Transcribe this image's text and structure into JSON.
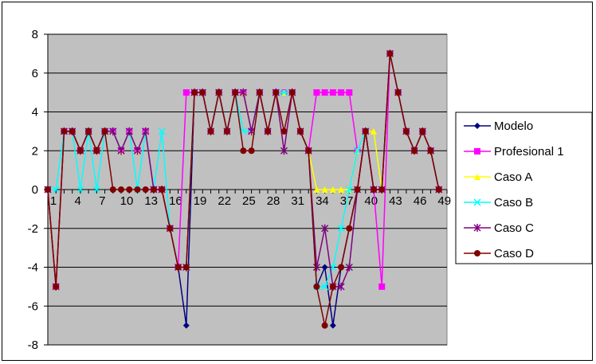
{
  "chart_data": {
    "type": "line",
    "title": "",
    "xlabel": "",
    "ylabel": "",
    "ylim": [
      -8,
      8
    ],
    "ytick_step": 2,
    "xlim": [
      1,
      50
    ],
    "x_tick_labels": [
      "1",
      "4",
      "7",
      "10",
      "13",
      "16",
      "19",
      "22",
      "25",
      "28",
      "31",
      "34",
      "37",
      "40",
      "43",
      "46",
      "49"
    ],
    "plot_background": "#C0C0C0",
    "grid": "horizontal",
    "legend_position": "right",
    "series": [
      {
        "name": "Modelo",
        "color": "#000080",
        "marker": "diamond",
        "values": [
          0,
          -5,
          3,
          3,
          2,
          3,
          2,
          3,
          3,
          2,
          3,
          2,
          3,
          0,
          0,
          -2,
          -4,
          -7,
          5,
          5,
          3,
          5,
          3,
          5,
          5,
          3,
          5,
          3,
          5,
          5,
          5,
          3,
          2,
          -5,
          -4,
          -7,
          -4,
          -2,
          0,
          3,
          0,
          0,
          7,
          5,
          3,
          2,
          3,
          2,
          0
        ]
      },
      {
        "name": "Profesional 1",
        "color": "#FF00FF",
        "marker": "square",
        "values": [
          0,
          -5,
          3,
          3,
          2,
          3,
          2,
          3,
          3,
          2,
          3,
          2,
          3,
          0,
          0,
          -2,
          -4,
          5,
          5,
          5,
          3,
          5,
          3,
          5,
          5,
          3,
          5,
          3,
          5,
          5,
          5,
          3,
          2,
          5,
          5,
          5,
          5,
          5,
          2,
          3,
          0,
          -5,
          7,
          5,
          3,
          2,
          3,
          2,
          0
        ]
      },
      {
        "name": "Caso A",
        "color": "#FFFF00",
        "marker": "triangle",
        "values": [
          0,
          -5,
          3,
          3,
          2,
          3,
          2,
          3,
          3,
          2,
          3,
          2,
          3,
          0,
          0,
          -2,
          -4,
          -4,
          5,
          5,
          3,
          5,
          3,
          5,
          5,
          3,
          5,
          3,
          5,
          5,
          5,
          3,
          2,
          0,
          0,
          0,
          0,
          0,
          2,
          3,
          3,
          0,
          7,
          5,
          3,
          2,
          3,
          2,
          0
        ]
      },
      {
        "name": "Caso B",
        "color": "#00FFFF",
        "marker": "x",
        "values": [
          0,
          0,
          3,
          3,
          0,
          3,
          0,
          3,
          3,
          2,
          3,
          0,
          3,
          0,
          3,
          -2,
          -4,
          -4,
          5,
          5,
          3,
          5,
          3,
          5,
          3,
          3,
          5,
          3,
          5,
          5,
          5,
          3,
          2,
          -5,
          -5,
          -4,
          -2,
          0,
          2,
          3,
          0,
          0,
          7,
          5,
          3,
          2,
          3,
          2,
          0
        ]
      },
      {
        "name": "Caso C",
        "color": "#800080",
        "marker": "star",
        "values": [
          0,
          -5,
          3,
          3,
          2,
          3,
          2,
          3,
          3,
          2,
          3,
          2,
          3,
          0,
          0,
          -2,
          -4,
          -4,
          5,
          5,
          3,
          5,
          3,
          5,
          5,
          3,
          5,
          3,
          5,
          2,
          5,
          3,
          2,
          -4,
          -2,
          -5,
          -5,
          -4,
          0,
          3,
          0,
          0,
          7,
          5,
          3,
          2,
          3,
          2,
          0
        ]
      },
      {
        "name": "Caso D",
        "color": "#800000",
        "marker": "circle",
        "values": [
          0,
          -5,
          3,
          3,
          2,
          3,
          2,
          3,
          0,
          0,
          0,
          0,
          0,
          0,
          0,
          -2,
          -4,
          -4,
          5,
          5,
          3,
          5,
          3,
          5,
          2,
          2,
          5,
          3,
          5,
          3,
          5,
          3,
          2,
          -5,
          -7,
          -5,
          -4,
          -2,
          0,
          3,
          0,
          0,
          7,
          5,
          3,
          2,
          3,
          2,
          0
        ]
      }
    ]
  }
}
